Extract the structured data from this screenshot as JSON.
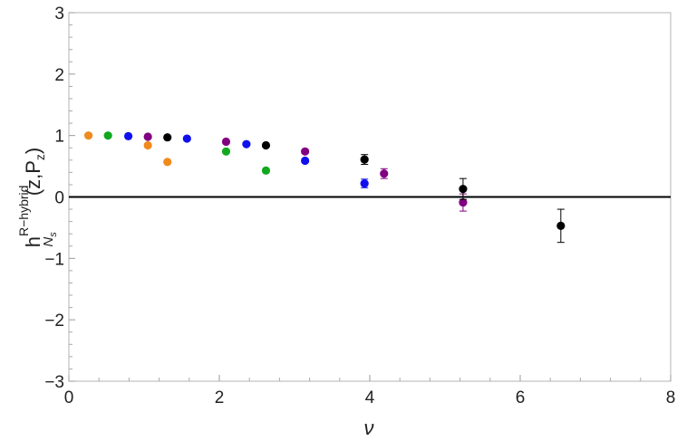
{
  "chart_data": {
    "type": "scatter",
    "title": "",
    "xlabel": "ν",
    "ylabel": {
      "base": "h",
      "sup": "R−hybrid",
      "sub_main": "N",
      "sub_sub": "s",
      "args": "(z,P",
      "args_sub": "z",
      "close": ")"
    },
    "xlim": [
      0,
      8
    ],
    "ylim": [
      -3,
      3
    ],
    "xticks": [
      0,
      2,
      4,
      6,
      8
    ],
    "yticks": [
      -3,
      -2,
      -1,
      0,
      1,
      2,
      3
    ],
    "grid": false,
    "reference_line_y": 0,
    "colors": {
      "orange": "#f08a1c",
      "green": "#12a81e",
      "blue": "#1010ee",
      "purple": "#800080",
      "black": "#000000"
    },
    "series": [
      {
        "color": "#f08a1c",
        "points": [
          {
            "x": 0.26,
            "y": 1.0,
            "err": 0
          },
          {
            "x": 1.05,
            "y": 0.84,
            "err": 0
          },
          {
            "x": 1.31,
            "y": 0.57,
            "err": 0
          }
        ]
      },
      {
        "color": "#12a81e",
        "points": [
          {
            "x": 0.52,
            "y": 1.0,
            "err": 0
          },
          {
            "x": 2.09,
            "y": 0.74,
            "err": 0
          },
          {
            "x": 2.62,
            "y": 0.43,
            "err": 0
          }
        ]
      },
      {
        "color": "#1010ee",
        "points": [
          {
            "x": 0.79,
            "y": 0.99,
            "err": 0
          },
          {
            "x": 1.57,
            "y": 0.95,
            "err": 0
          },
          {
            "x": 2.36,
            "y": 0.86,
            "err": 0
          },
          {
            "x": 3.14,
            "y": 0.59,
            "err": 0.03
          },
          {
            "x": 3.93,
            "y": 0.22,
            "err": 0.07
          }
        ]
      },
      {
        "color": "#800080",
        "points": [
          {
            "x": 1.05,
            "y": 0.98,
            "err": 0
          },
          {
            "x": 2.09,
            "y": 0.9,
            "err": 0
          },
          {
            "x": 3.14,
            "y": 0.74,
            "err": 0.03
          },
          {
            "x": 4.19,
            "y": 0.38,
            "err": 0.08
          },
          {
            "x": 5.24,
            "y": -0.09,
            "err": 0.14
          }
        ]
      },
      {
        "color": "#000000",
        "points": [
          {
            "x": 1.31,
            "y": 0.97,
            "err": 0
          },
          {
            "x": 2.62,
            "y": 0.84,
            "err": 0
          },
          {
            "x": 3.93,
            "y": 0.61,
            "err": 0.08
          },
          {
            "x": 5.24,
            "y": 0.13,
            "err": 0.17
          },
          {
            "x": 6.54,
            "y": -0.47,
            "err": 0.27
          }
        ]
      }
    ]
  }
}
